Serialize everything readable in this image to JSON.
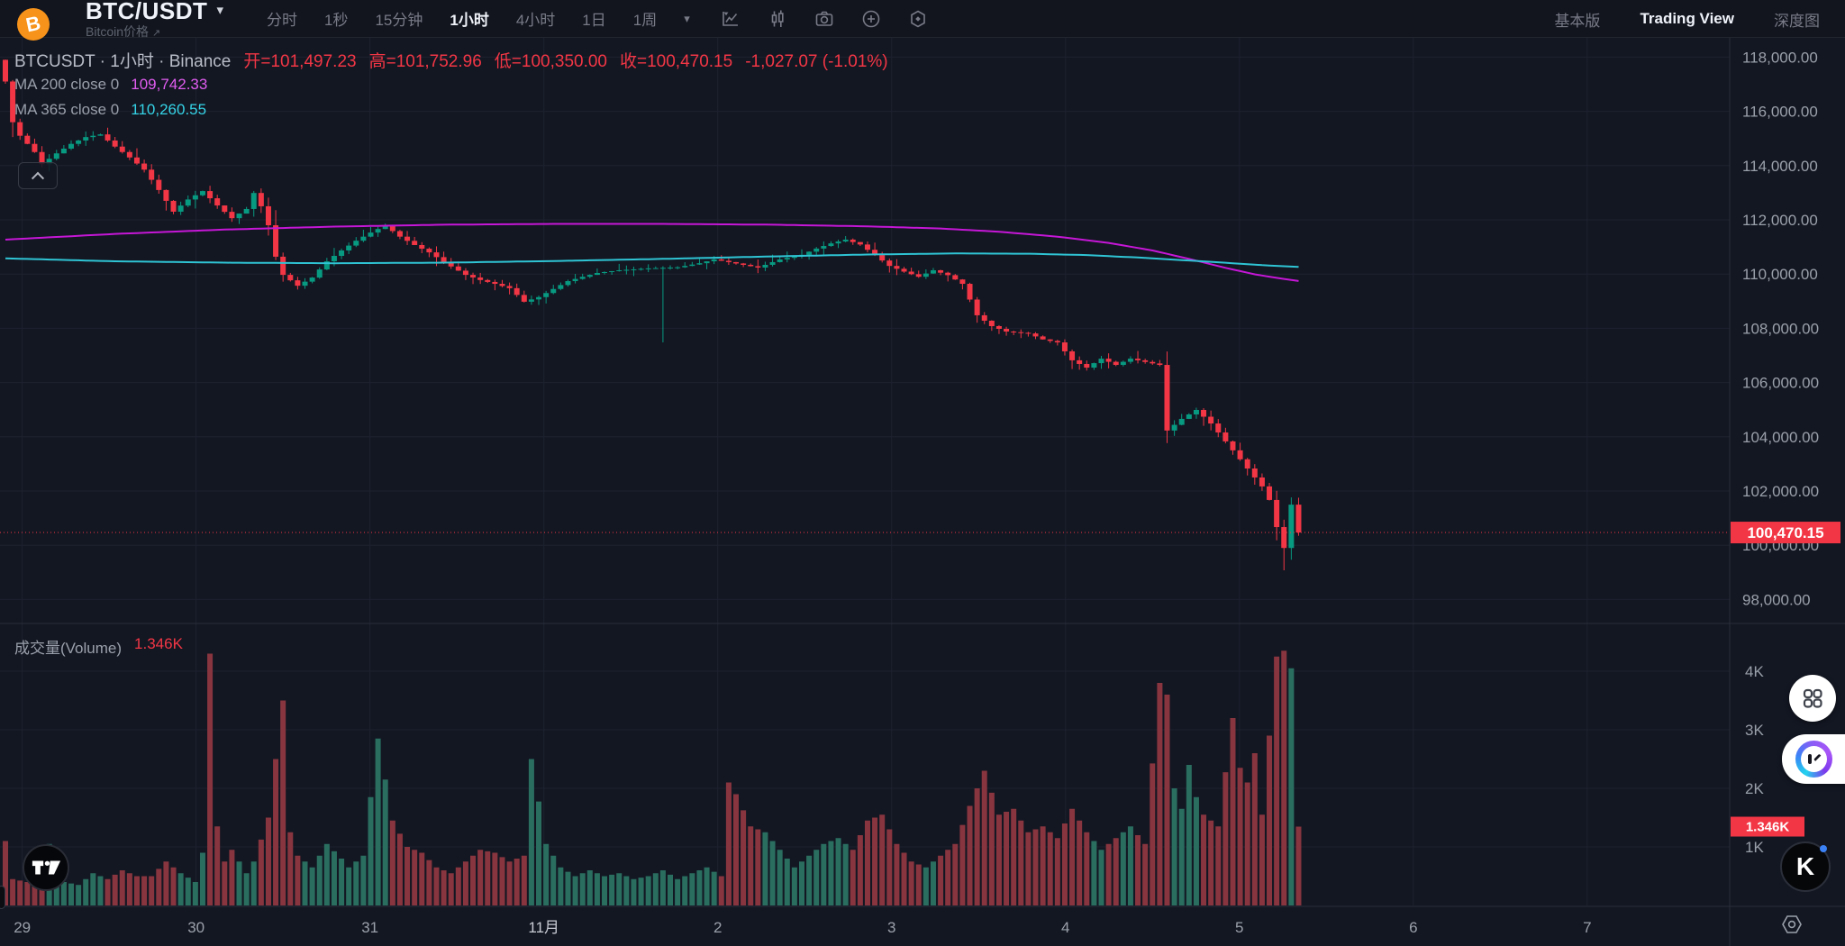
{
  "header": {
    "symbol": "BTC/USDT",
    "symbol_caret": "▾",
    "subtitle": "Bitcoin价格",
    "subtitle_arrow": "↗",
    "coin_letter": "B",
    "timeframes": [
      "分时",
      "1秒",
      "15分钟",
      "1小时",
      "4小时",
      "1日",
      "1周"
    ],
    "active_timeframe": "1小时",
    "timeframe_caret": "▾",
    "toolbar_icons": [
      "chart-style-icon",
      "candlestick-icon",
      "camera-icon",
      "add-circle-icon",
      "indicator-hexagon-icon"
    ],
    "right_tabs": [
      "基本版",
      "Trading View",
      "深度图"
    ],
    "active_right_tab": "Trading View"
  },
  "legend": {
    "title": "BTCUSDT · 1小时 · Binance",
    "open": "开=101,497.23",
    "high": "高=101,752.96",
    "low": "低=100,350.00",
    "close": "收=100,470.15",
    "change": "-1,027.07 (-1.01%)",
    "ma200_label": "MA 200 close 0",
    "ma200_value": "109,742.33",
    "ma365_label": "MA 365 close 0",
    "ma365_value": "110,260.55",
    "volume_label": "成交量(Volume)",
    "volume_value": "1.346K"
  },
  "price_axis": {
    "ticks": [
      {
        "label": "118,000.00",
        "value": 118000
      },
      {
        "label": "116,000.00",
        "value": 116000
      },
      {
        "label": "114,000.00",
        "value": 114000
      },
      {
        "label": "112,000.00",
        "value": 112000
      },
      {
        "label": "110,000.00",
        "value": 110000
      },
      {
        "label": "108,000.00",
        "value": 108000
      },
      {
        "label": "106,000.00",
        "value": 106000
      },
      {
        "label": "104,000.00",
        "value": 104000
      },
      {
        "label": "102,000.00",
        "value": 102000
      },
      {
        "label": "100,000.00",
        "value": 100000
      },
      {
        "label": "98,000.00",
        "value": 98000
      }
    ],
    "current_badge": "100,470.15"
  },
  "volume_axis": {
    "ticks": [
      {
        "label": "4K",
        "value": 4
      },
      {
        "label": "3K",
        "value": 3
      },
      {
        "label": "2K",
        "value": 2
      },
      {
        "label": "1K",
        "value": 1
      }
    ],
    "current_badge": "1.346K"
  },
  "time_axis": {
    "ticks": [
      {
        "label": "29",
        "bar": 2.3,
        "month": false
      },
      {
        "label": "30",
        "bar": 26.1,
        "month": false
      },
      {
        "label": "31",
        "bar": 49.9,
        "month": false
      },
      {
        "label": "11月",
        "bar": 73.7,
        "month": true
      },
      {
        "label": "2",
        "bar": 97.5,
        "month": false
      },
      {
        "label": "3",
        "bar": 121.3,
        "month": false
      },
      {
        "label": "4",
        "bar": 145.1,
        "month": false
      },
      {
        "label": "5",
        "bar": 168.9,
        "month": false
      },
      {
        "label": "6",
        "bar": 192.7,
        "month": false
      },
      {
        "label": "7",
        "bar": 216.5,
        "month": false
      }
    ]
  },
  "widgets": {
    "tv_watermark": "tradingview-logo",
    "apps_button": "apps-grid-icon",
    "assistant_button": "bot-avatar-icon",
    "k_button_label": "K",
    "axis_settings": "gear-icon"
  },
  "colors": {
    "background": "#131722",
    "grid": "#1e2230",
    "up": "#089981",
    "down": "#f23645",
    "volume_up": "#2a6e60",
    "volume_down": "#88353f",
    "ma200": "#c517d6",
    "ma365": "#2fc4d4",
    "axis_text": "#9aa0aa",
    "badge": "#f23645",
    "accent_orange": "#f7931a"
  },
  "chart_data": {
    "type": "candlestick",
    "symbol": "BTCUSDT",
    "interval": "1小时",
    "exchange": "Binance",
    "bars_visible": 178,
    "visible_price_range": [
      97180,
      118700
    ],
    "price_gridlines": [
      98000,
      100000,
      102000,
      104000,
      106000,
      108000,
      110000,
      112000,
      114000,
      116000,
      118000
    ],
    "volume_gridlines_k": [
      1,
      2,
      3,
      4
    ],
    "last": {
      "open": 101497.23,
      "high": 101752.96,
      "low": 100350.0,
      "close": 100470.15,
      "change": -1027.07,
      "change_pct": -1.01,
      "volume_k": 1.346
    },
    "ma200_last": 109742.33,
    "ma365_last": 110260.55,
    "close_path": [
      [
        0,
        117100
      ],
      [
        1,
        115600
      ],
      [
        2,
        115100
      ],
      [
        4,
        114500
      ],
      [
        5,
        114050
      ],
      [
        7,
        114450
      ],
      [
        9,
        114800
      ],
      [
        11,
        115050
      ],
      [
        13,
        115150
      ],
      [
        15,
        114700
      ],
      [
        17,
        114300
      ],
      [
        19,
        113850
      ],
      [
        21,
        113100
      ],
      [
        23,
        112300
      ],
      [
        25,
        112750
      ],
      [
        27,
        113060
      ],
      [
        29,
        112530
      ],
      [
        31,
        112060
      ],
      [
        33,
        112400
      ],
      [
        34,
        112990
      ],
      [
        35,
        112500
      ],
      [
        36,
        111800
      ],
      [
        37,
        110640
      ],
      [
        38,
        109970
      ],
      [
        40,
        109570
      ],
      [
        42,
        109870
      ],
      [
        44,
        110470
      ],
      [
        46,
        110870
      ],
      [
        48,
        111230
      ],
      [
        50,
        111530
      ],
      [
        52,
        111790
      ],
      [
        54,
        111380
      ],
      [
        56,
        111070
      ],
      [
        58,
        110800
      ],
      [
        60,
        110450
      ],
      [
        61,
        110280
      ],
      [
        63,
        109970
      ],
      [
        65,
        109780
      ],
      [
        67,
        109640
      ],
      [
        69,
        109480
      ],
      [
        71,
        108980
      ],
      [
        73,
        109150
      ],
      [
        75,
        109450
      ],
      [
        77,
        109740
      ],
      [
        79,
        109900
      ],
      [
        81,
        110040
      ],
      [
        84,
        110140
      ],
      [
        88,
        110210
      ],
      [
        92,
        110250
      ],
      [
        95,
        110400
      ],
      [
        97,
        110540
      ],
      [
        100,
        110390
      ],
      [
        103,
        110240
      ],
      [
        106,
        110540
      ],
      [
        109,
        110710
      ],
      [
        111,
        110940
      ],
      [
        113,
        111130
      ],
      [
        115,
        111270
      ],
      [
        117,
        111090
      ],
      [
        119,
        110700
      ],
      [
        121,
        110300
      ],
      [
        123,
        110090
      ],
      [
        125,
        109900
      ],
      [
        127,
        110140
      ],
      [
        129,
        109960
      ],
      [
        131,
        109640
      ],
      [
        133,
        108480
      ],
      [
        135,
        108080
      ],
      [
        137,
        107880
      ],
      [
        140,
        107810
      ],
      [
        142,
        107590
      ],
      [
        144,
        107480
      ],
      [
        146,
        106820
      ],
      [
        148,
        106550
      ],
      [
        150,
        106880
      ],
      [
        152,
        106650
      ],
      [
        154,
        106880
      ],
      [
        156,
        106760
      ],
      [
        158,
        106650
      ],
      [
        159,
        104230
      ],
      [
        160,
        104440
      ],
      [
        161,
        104660
      ],
      [
        163,
        104990
      ],
      [
        165,
        104490
      ],
      [
        167,
        103830
      ],
      [
        169,
        103170
      ],
      [
        170,
        102830
      ],
      [
        172,
        102170
      ],
      [
        173,
        101670
      ],
      [
        174,
        100670
      ],
      [
        175,
        99900
      ],
      [
        176,
        101497.23
      ],
      [
        177,
        100470.15
      ]
    ],
    "volume_path_k": [
      [
        0,
        1.1
      ],
      [
        1,
        0.45
      ],
      [
        3,
        0.4
      ],
      [
        5,
        0.5
      ],
      [
        6,
        1.05
      ],
      [
        8,
        0.4
      ],
      [
        10,
        0.35
      ],
      [
        12,
        0.55
      ],
      [
        14,
        0.45
      ],
      [
        16,
        0.6
      ],
      [
        18,
        0.5
      ],
      [
        20,
        0.5
      ],
      [
        22,
        0.75
      ],
      [
        24,
        0.55
      ],
      [
        26,
        0.4
      ],
      [
        27,
        0.9
      ],
      [
        28,
        4.3
      ],
      [
        29,
        1.35
      ],
      [
        30,
        0.75
      ],
      [
        31,
        0.95
      ],
      [
        33,
        0.55
      ],
      [
        34,
        0.75
      ],
      [
        36,
        1.5
      ],
      [
        38,
        3.5
      ],
      [
        39,
        1.25
      ],
      [
        40,
        0.85
      ],
      [
        42,
        0.65
      ],
      [
        44,
        1.05
      ],
      [
        46,
        0.8
      ],
      [
        47,
        0.65
      ],
      [
        49,
        0.85
      ],
      [
        51,
        2.85
      ],
      [
        53,
        1.45
      ],
      [
        55,
        1.0
      ],
      [
        57,
        0.9
      ],
      [
        59,
        0.65
      ],
      [
        61,
        0.55
      ],
      [
        63,
        0.75
      ],
      [
        65,
        0.95
      ],
      [
        67,
        0.9
      ],
      [
        69,
        0.75
      ],
      [
        71,
        0.85
      ],
      [
        72,
        2.5
      ],
      [
        74,
        1.05
      ],
      [
        76,
        0.65
      ],
      [
        78,
        0.5
      ],
      [
        80,
        0.6
      ],
      [
        82,
        0.5
      ],
      [
        84,
        0.55
      ],
      [
        86,
        0.45
      ],
      [
        88,
        0.5
      ],
      [
        90,
        0.6
      ],
      [
        92,
        0.45
      ],
      [
        94,
        0.55
      ],
      [
        96,
        0.65
      ],
      [
        98,
        0.5
      ],
      [
        99,
        2.1
      ],
      [
        100,
        1.9
      ],
      [
        102,
        1.35
      ],
      [
        104,
        1.25
      ],
      [
        106,
        0.95
      ],
      [
        108,
        0.65
      ],
      [
        110,
        0.85
      ],
      [
        112,
        1.05
      ],
      [
        114,
        1.15
      ],
      [
        116,
        0.95
      ],
      [
        118,
        1.45
      ],
      [
        120,
        1.55
      ],
      [
        122,
        1.05
      ],
      [
        124,
        0.75
      ],
      [
        126,
        0.65
      ],
      [
        128,
        0.85
      ],
      [
        130,
        1.05
      ],
      [
        132,
        1.7
      ],
      [
        134,
        2.3
      ],
      [
        136,
        1.55
      ],
      [
        138,
        1.65
      ],
      [
        140,
        1.25
      ],
      [
        142,
        1.35
      ],
      [
        144,
        1.15
      ],
      [
        146,
        1.65
      ],
      [
        148,
        1.25
      ],
      [
        150,
        0.95
      ],
      [
        152,
        1.15
      ],
      [
        154,
        1.35
      ],
      [
        156,
        1.05
      ],
      [
        158,
        3.8
      ],
      [
        159,
        3.6
      ],
      [
        160,
        2.0
      ],
      [
        161,
        1.65
      ],
      [
        162,
        2.4
      ],
      [
        163,
        1.85
      ],
      [
        164,
        1.55
      ],
      [
        166,
        1.35
      ],
      [
        168,
        3.2
      ],
      [
        169,
        2.35
      ],
      [
        170,
        2.1
      ],
      [
        171,
        2.6
      ],
      [
        172,
        1.55
      ],
      [
        173,
        2.9
      ],
      [
        174,
        4.25
      ],
      [
        175,
        4.35
      ],
      [
        176,
        4.05
      ],
      [
        177,
        1.346
      ]
    ],
    "ma200_path": [
      [
        0,
        111270
      ],
      [
        15,
        111480
      ],
      [
        30,
        111640
      ],
      [
        45,
        111750
      ],
      [
        60,
        111820
      ],
      [
        75,
        111850
      ],
      [
        90,
        111850
      ],
      [
        105,
        111820
      ],
      [
        118,
        111760
      ],
      [
        128,
        111680
      ],
      [
        136,
        111560
      ],
      [
        144,
        111380
      ],
      [
        151,
        111150
      ],
      [
        157,
        110870
      ],
      [
        162,
        110560
      ],
      [
        167,
        110230
      ],
      [
        171,
        109990
      ],
      [
        174,
        109860
      ],
      [
        177,
        109742.33
      ]
    ],
    "ma365_path": [
      [
        0,
        110580
      ],
      [
        15,
        110470
      ],
      [
        30,
        110420
      ],
      [
        45,
        110400
      ],
      [
        60,
        110420
      ],
      [
        75,
        110480
      ],
      [
        90,
        110560
      ],
      [
        105,
        110650
      ],
      [
        118,
        110720
      ],
      [
        130,
        110760
      ],
      [
        140,
        110750
      ],
      [
        148,
        110700
      ],
      [
        155,
        110610
      ],
      [
        162,
        110500
      ],
      [
        168,
        110400
      ],
      [
        172,
        110330
      ],
      [
        177,
        110260.55
      ]
    ],
    "special_wicks": [
      {
        "bar": 40,
        "low": 109430
      },
      {
        "bar": 90,
        "low": 107480
      },
      {
        "bar": 175,
        "low": 99076
      }
    ]
  }
}
